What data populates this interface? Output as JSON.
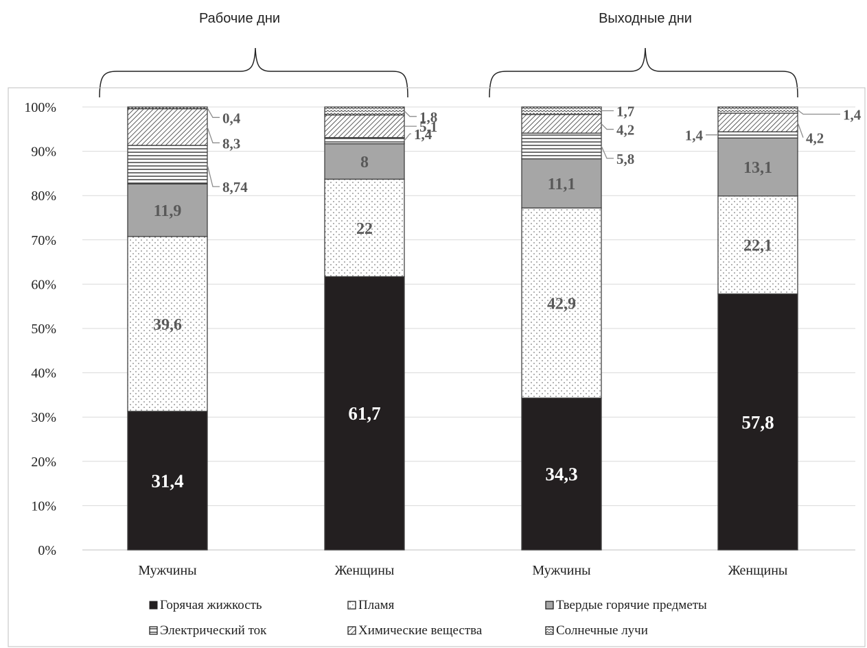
{
  "group_labels": [
    "Рабочие дни",
    "Выходные дни"
  ],
  "chart_data": {
    "type": "bar",
    "stacked": true,
    "categories": [
      "Мужчины",
      "Женщины",
      "Мужчины",
      "Женщины"
    ],
    "category_groups": [
      {
        "label": "Рабочие дни",
        "categories": [
          0,
          1
        ]
      },
      {
        "label": "Выходные дни",
        "categories": [
          2,
          3
        ]
      }
    ],
    "series": [
      {
        "name": "Горячая жижкость",
        "values": [
          31.4,
          61.7,
          34.3,
          57.8
        ],
        "labels": [
          "31,4",
          "61,7",
          "34,3",
          "57,8"
        ]
      },
      {
        "name": "Пламя",
        "values": [
          39.6,
          22,
          42.9,
          22.1
        ],
        "labels": [
          "39,6",
          "22",
          "42,9",
          "22,1"
        ]
      },
      {
        "name": "Твердые горячие предметы",
        "values": [
          11.9,
          8,
          11.1,
          13.1
        ],
        "labels": [
          "11,9",
          "8",
          "11,1",
          "13,1"
        ]
      },
      {
        "name": "Электрический ток",
        "values": [
          8.74,
          1.4,
          5.8,
          1.4
        ],
        "labels": [
          "8,74",
          "1,4",
          "5,8",
          "1,4"
        ]
      },
      {
        "name": "Химические вещества",
        "values": [
          8.3,
          5.1,
          4.2,
          4.2
        ],
        "labels": [
          "8,3",
          "5,1",
          "4,2",
          "4,2"
        ]
      },
      {
        "name": "Солнечные лучи",
        "values": [
          0.4,
          1.8,
          1.7,
          1.4
        ],
        "labels": [
          "0,4",
          "1,8",
          "1,7",
          "1,4"
        ]
      }
    ],
    "y_ticks": [
      "0%",
      "10%",
      "20%",
      "30%",
      "40%",
      "50%",
      "60%",
      "70%",
      "80%",
      "90%",
      "100%"
    ],
    "ylim": [
      0,
      100
    ],
    "grid": true,
    "legend_position": "bottom",
    "colors": {
      "hot_liquid": "#231f20",
      "solid_objects": "#a6a6a6",
      "outline": "#404040",
      "grid": "#d9d9d9"
    }
  }
}
